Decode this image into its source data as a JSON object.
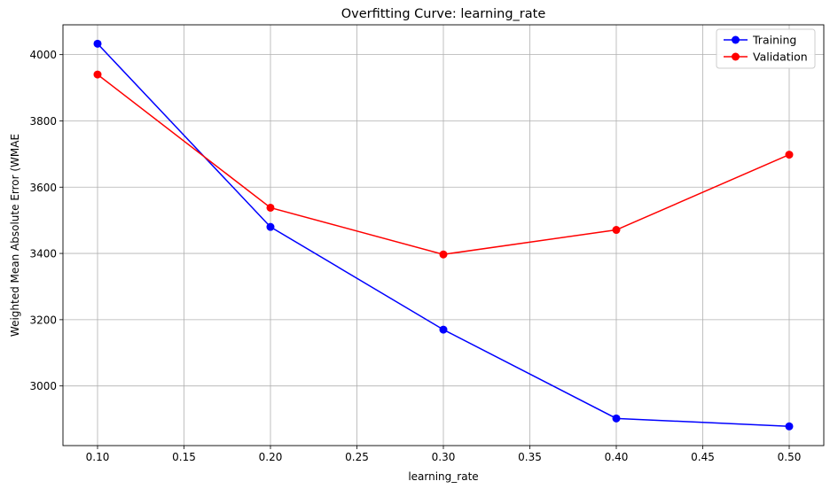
{
  "chart_data": {
    "type": "line",
    "title": "Overfitting Curve: learning_rate",
    "xlabel": "learning_rate",
    "ylabel": "Weighted Mean Absolute Error (WMAE",
    "x": [
      0.1,
      0.2,
      0.3,
      0.4,
      0.5
    ],
    "xlim": [
      0.08,
      0.52
    ],
    "ylim": [
      2820,
      4090
    ],
    "xticks": [
      "0.10",
      "0.15",
      "0.20",
      "0.25",
      "0.30",
      "0.35",
      "0.40",
      "0.45",
      "0.50"
    ],
    "yticks": [
      "3000",
      "3200",
      "3400",
      "3600",
      "3800",
      "4000"
    ],
    "grid": true,
    "legend_position": "top-right",
    "series": [
      {
        "name": "Training",
        "color": "#0000ff",
        "values": [
          4033,
          3480,
          3170,
          2902,
          2878
        ]
      },
      {
        "name": "Validation",
        "color": "#ff0000",
        "values": [
          3940,
          3538,
          3397,
          3471,
          3698
        ]
      }
    ]
  }
}
